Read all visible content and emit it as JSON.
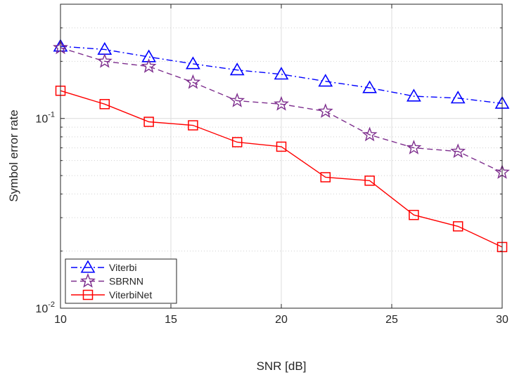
{
  "chart_data": {
    "type": "line",
    "xlabel": "SNR [dB]",
    "ylabel": "Symbol error rate",
    "x": [
      10,
      12,
      14,
      16,
      18,
      20,
      22,
      24,
      26,
      28,
      30
    ],
    "xlim": [
      10,
      30
    ],
    "xticks": [
      10,
      15,
      20,
      25,
      30
    ],
    "yscale": "log",
    "ylim": [
      0.01,
      0.4
    ],
    "yticks": [
      {
        "value": 0.1,
        "base": "10",
        "exp": "-1"
      },
      {
        "value": 0.01,
        "base": "10",
        "exp": "-2"
      }
    ],
    "grid": true,
    "legend_position": "bottom-left",
    "series": [
      {
        "name": "Viterbi",
        "color": "#0000ff",
        "linestyle": "dash-dot",
        "marker": "triangle",
        "values": [
          0.24,
          0.231,
          0.211,
          0.194,
          0.18,
          0.171,
          0.157,
          0.145,
          0.131,
          0.128,
          0.12
        ]
      },
      {
        "name": "SBRNN",
        "color": "#7e2f8e",
        "linestyle": "dashed",
        "marker": "star",
        "values": [
          0.236,
          0.2,
          0.188,
          0.155,
          0.124,
          0.119,
          0.109,
          0.082,
          0.07,
          0.067,
          0.052
        ]
      },
      {
        "name": "ViterbiNet",
        "color": "#ff0000",
        "linestyle": "solid",
        "marker": "square",
        "values": [
          0.14,
          0.119,
          0.096,
          0.092,
          0.075,
          0.071,
          0.049,
          0.047,
          0.031,
          0.027,
          0.021
        ]
      }
    ]
  }
}
